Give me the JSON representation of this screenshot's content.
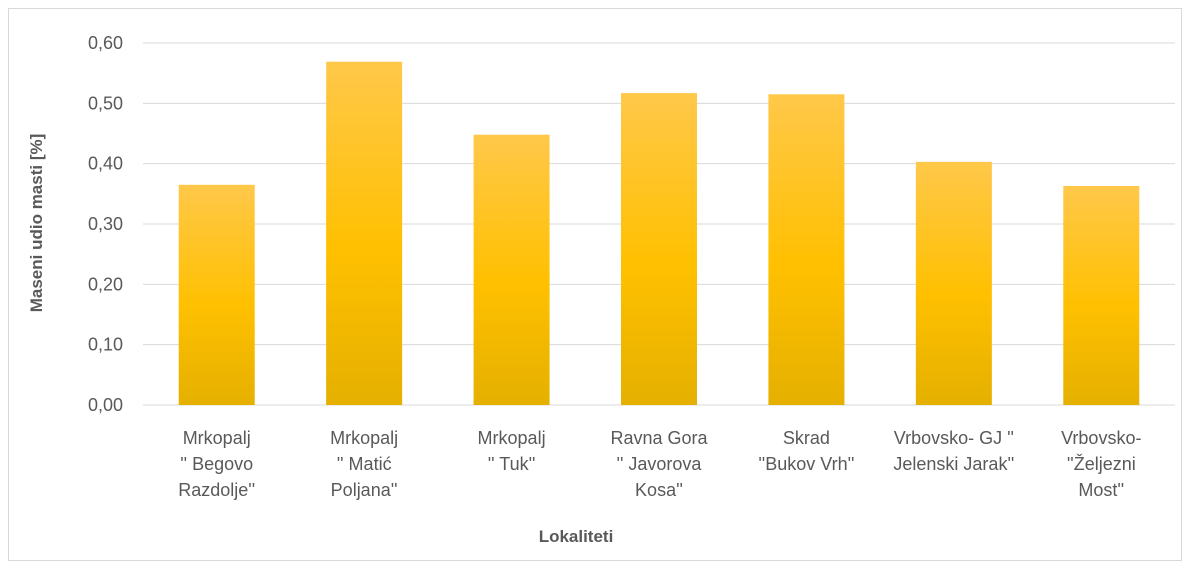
{
  "chart_data": {
    "type": "bar",
    "categories": [
      [
        "Mrkopalj",
        "'' Begovo",
        "Razdolje''"
      ],
      [
        "Mrkopalj",
        "'' Matić",
        "Poljana''"
      ],
      [
        "Mrkopalj",
        "'' Tuk''"
      ],
      [
        "Ravna Gora",
        "'' Javorova",
        "Kosa''"
      ],
      [
        "Skrad",
        "''Bukov Vrh''"
      ],
      [
        "Vrbovsko- GJ ''",
        "Jelenski Jarak''"
      ],
      [
        "Vrbovsko-",
        "''Željezni",
        "Most''"
      ]
    ],
    "values": [
      0.365,
      0.569,
      0.448,
      0.517,
      0.515,
      0.403,
      0.363
    ],
    "yticks": [
      "0,00",
      "0,10",
      "0,20",
      "0,30",
      "0,40",
      "0,50",
      "0,60"
    ],
    "ylim": [
      0,
      0.6
    ],
    "xlabel": "Lokaliteti",
    "ylabel": "Maseni udio masti [%]",
    "grid": true,
    "bar_color_top": "#ffc84a",
    "bar_color_mid": "#ffc000",
    "bar_color_bottom": "#e5b000",
    "grid_color": "#d9d9d9"
  }
}
